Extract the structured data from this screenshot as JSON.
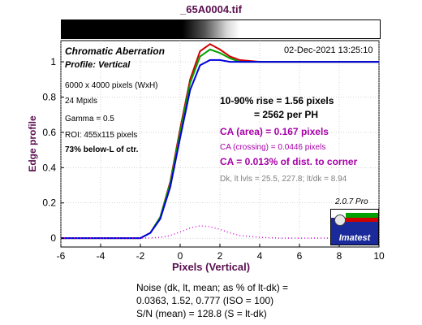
{
  "title": "_65A0004.tif",
  "header": {
    "heading": "Chromatic Aberration",
    "profile": "Profile: Vertical",
    "date": "02-Dec-2021 13:25:10"
  },
  "info": [
    "6000 x 4000 pixels (WxH)",
    "24 Mpxls",
    "Gamma = 0.5",
    "ROI: 455x115 pixels",
    "73% below-L of ctr."
  ],
  "results": {
    "rise_line1": "10-90% rise = 1.56 pixels",
    "rise_line2": "= 2562 per PH",
    "ca_area": "CA (area) = 0.167 pixels",
    "ca_crossing": "CA (crossing) = 0.0446 pixels",
    "ca_corner": "CA = 0.013% of dist. to corner",
    "levels": "Dk, lt lvls = 25.5, 227.8;  lt/dk = 8.94"
  },
  "version": "2.0.7  Pro",
  "logo_text": "Imatest",
  "noise": {
    "line1": "Noise (dk, lt, mean; as % of lt-dk) =",
    "line2": "0.0363,  1.52,  0.777  (ISO = 100)",
    "line3": "S/N (mean) = 128.8  (S = lt-dk)"
  },
  "chart_data": {
    "type": "line",
    "xlabel": "Pixels (Vertical)",
    "ylabel": "Edge profile",
    "xlim": [
      -6,
      10
    ],
    "ylim": [
      -0.05,
      1.12
    ],
    "x_ticks": [
      -6,
      -4,
      -2,
      0,
      2,
      4,
      6,
      8,
      10
    ],
    "y_ticks": [
      0,
      0.2,
      0.4,
      0.6,
      0.8,
      1
    ],
    "x_tick_labels": [
      "-6",
      "-4",
      "-2",
      "0",
      "2",
      "4",
      "6",
      "8",
      "10"
    ],
    "y_tick_labels": [
      "0",
      "0.2",
      "0.4",
      "0.6",
      "0.8",
      "1"
    ],
    "grid": true,
    "series": [
      {
        "color": "#d00000",
        "style": "solid",
        "x": [
          -6,
          -2,
          -1.5,
          -1,
          -0.5,
          0,
          0.5,
          1,
          1.5,
          2,
          2.5,
          3,
          4,
          5,
          6,
          8,
          10
        ],
        "y": [
          0,
          0,
          0.03,
          0.12,
          0.32,
          0.62,
          0.9,
          1.06,
          1.1,
          1.07,
          1.03,
          1.01,
          1.0,
          1.0,
          1.0,
          1.0,
          1.0
        ]
      },
      {
        "color": "#00a000",
        "style": "solid",
        "x": [
          -6,
          -2,
          -1.5,
          -1,
          -0.5,
          0,
          0.5,
          1,
          1.5,
          2,
          2.5,
          3,
          4,
          5,
          6,
          8,
          10
        ],
        "y": [
          0,
          0,
          0.03,
          0.12,
          0.31,
          0.6,
          0.88,
          1.03,
          1.07,
          1.05,
          1.02,
          1.0,
          1.0,
          1.0,
          1.0,
          1.0,
          1.0
        ]
      },
      {
        "color": "#0000e0",
        "style": "solid",
        "x": [
          -6,
          -2,
          -1.5,
          -1,
          -0.5,
          0,
          0.5,
          1,
          1.5,
          2,
          2.5,
          3,
          4,
          5,
          6,
          8,
          10
        ],
        "y": [
          0,
          0,
          0.03,
          0.11,
          0.29,
          0.57,
          0.84,
          0.98,
          1.01,
          1.01,
          1.0,
          1.0,
          1.0,
          1.0,
          1.0,
          1.0,
          1.0
        ]
      },
      {
        "color": "#d000d0",
        "style": "dotted",
        "x": [
          -6,
          -2,
          -1.5,
          -1,
          -0.5,
          0,
          0.5,
          1,
          1.5,
          2,
          2.5,
          3,
          4,
          5,
          6,
          8,
          10
        ],
        "y": [
          0,
          0,
          0.001,
          0.005,
          0.015,
          0.035,
          0.058,
          0.07,
          0.065,
          0.05,
          0.03,
          0.015,
          0.005,
          0.0,
          0.0,
          0.0,
          0.0
        ]
      }
    ]
  }
}
